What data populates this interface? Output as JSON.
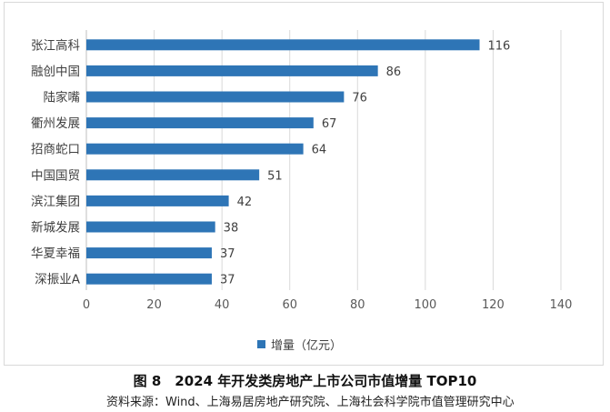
{
  "chart_data": {
    "type": "bar",
    "orientation": "horizontal",
    "categories": [
      "张江高科",
      "融创中国",
      "陆家嘴",
      "衢州发展",
      "招商蛇口",
      "中国国贸",
      "滨江集团",
      "新城发展",
      "华夏幸福",
      "深振业A"
    ],
    "series": [
      {
        "name": "增量（亿元）",
        "values": [
          116,
          86,
          76,
          67,
          64,
          51,
          42,
          38,
          37,
          37
        ]
      }
    ],
    "xlim": [
      0,
      140
    ],
    "xticks": [
      0,
      20,
      40,
      60,
      80,
      100,
      120,
      140
    ],
    "grid": "vertical",
    "legend": "bottom",
    "data_labels": true
  },
  "colors": {
    "bar": "#2e75b6",
    "grid": "#d9d9d9"
  },
  "figure": {
    "caption": "图 8　2024 年开发类房地产上市公司市值增量 TOP10",
    "source": "资料来源：Wind、上海易居房地产研究院、上海社会科学院市值管理研究中心"
  }
}
